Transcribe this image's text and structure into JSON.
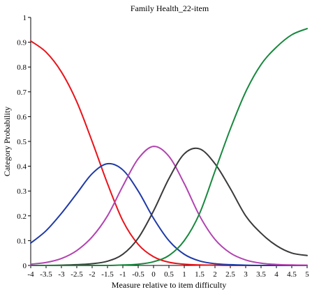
{
  "chart_data": {
    "type": "line",
    "title": "Family Health_22-item",
    "xlabel": "Measure relative to item difficulty",
    "ylabel": "Category Probability",
    "xlim": [
      -4,
      5
    ],
    "ylim": [
      0,
      1
    ],
    "x_ticks": [
      -4,
      -3.5,
      -3,
      -2.5,
      -2,
      -1.5,
      -1,
      -0.5,
      0,
      0.5,
      1,
      1.5,
      2,
      2.5,
      3,
      3.5,
      4,
      4.5,
      5
    ],
    "x_tick_labels": [
      "-4",
      "-3.5",
      "-3",
      "-2.5",
      "-2",
      "-1.5",
      "-1",
      "-0.5",
      "0",
      "0.5",
      "1",
      "1.5",
      "2",
      "2.5",
      "3",
      "3.5",
      "4",
      "4.5",
      "5"
    ],
    "y_ticks": [
      0,
      0.1,
      0.2,
      0.3,
      0.4,
      0.5,
      0.6,
      0.7,
      0.8,
      0.9,
      1
    ],
    "y_tick_labels": [
      "0",
      "0.1",
      "0.2",
      "0.3",
      "0.4",
      "0.5",
      "0.6",
      "0.7",
      "0.8",
      "0.9",
      "1"
    ],
    "grid": false,
    "legend": "none",
    "x": [
      -4,
      -3.5,
      -3,
      -2.5,
      -2,
      -1.5,
      -1,
      -0.5,
      0,
      0.5,
      1,
      1.5,
      2,
      2.5,
      3,
      3.5,
      4,
      4.5,
      5
    ],
    "series": [
      {
        "color": "#e8141b",
        "values": [
          0.905,
          0.86,
          0.78,
          0.66,
          0.5,
          0.33,
          0.18,
          0.085,
          0.035,
          0.013,
          0.005,
          0.002,
          0.001,
          0,
          0,
          0,
          0,
          0,
          0
        ]
      },
      {
        "color": "#1f3aa8",
        "values": [
          0.09,
          0.14,
          0.21,
          0.29,
          0.37,
          0.41,
          0.385,
          0.3,
          0.19,
          0.1,
          0.045,
          0.018,
          0.007,
          0.003,
          0.001,
          0,
          0,
          0,
          0
        ]
      },
      {
        "color": "#b243b0",
        "values": [
          0.005,
          0.012,
          0.028,
          0.06,
          0.115,
          0.2,
          0.32,
          0.43,
          0.48,
          0.44,
          0.33,
          0.2,
          0.105,
          0.05,
          0.022,
          0.009,
          0.004,
          0.002,
          0.001
        ]
      },
      {
        "color": "#3a3a3a",
        "values": [
          0,
          0,
          0.001,
          0.003,
          0.007,
          0.017,
          0.045,
          0.11,
          0.22,
          0.35,
          0.45,
          0.47,
          0.41,
          0.31,
          0.2,
          0.13,
          0.08,
          0.05,
          0.04
        ]
      },
      {
        "color": "#17883d",
        "values": [
          0,
          0,
          0,
          0,
          0,
          0,
          0.002,
          0.005,
          0.015,
          0.04,
          0.1,
          0.21,
          0.38,
          0.55,
          0.7,
          0.81,
          0.88,
          0.93,
          0.955
        ]
      }
    ]
  }
}
